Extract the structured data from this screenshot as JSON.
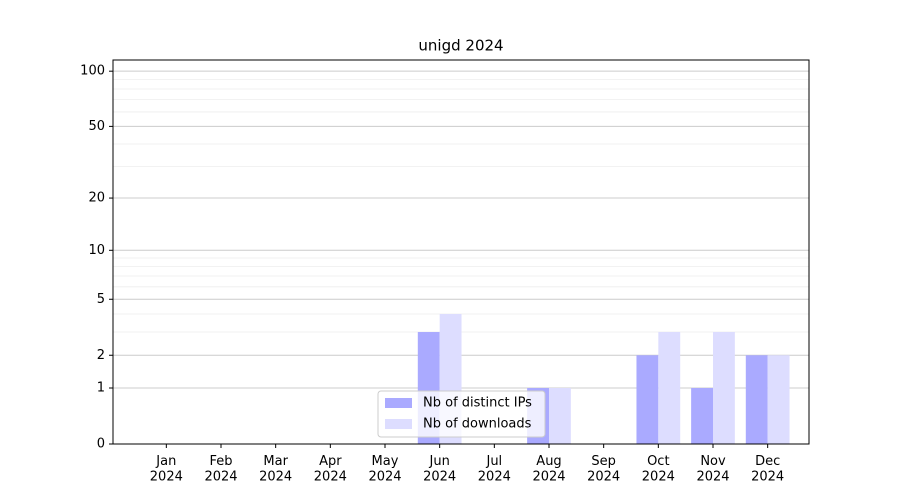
{
  "chart_data": {
    "type": "bar",
    "title": "unigd 2024",
    "categories": [
      "Jan\n2024",
      "Feb\n2024",
      "Mar\n2024",
      "Apr\n2024",
      "May\n2024",
      "Jun\n2024",
      "Jul\n2024",
      "Aug\n2024",
      "Sep\n2024",
      "Oct\n2024",
      "Nov\n2024",
      "Dec\n2024"
    ],
    "series": [
      {
        "name": "Nb of distinct IPs",
        "color": "#aaaaff",
        "values": [
          0,
          0,
          0,
          0,
          0,
          3,
          0,
          1,
          0,
          2,
          1,
          2
        ]
      },
      {
        "name": "Nb of downloads",
        "color": "#ddddff",
        "values": [
          0,
          0,
          0,
          0,
          0,
          4,
          0,
          1,
          0,
          3,
          3,
          2
        ]
      }
    ],
    "y_scale": "log1p",
    "ylim": [
      0,
      115
    ],
    "yticks": [
      0,
      1,
      2,
      5,
      10,
      20,
      50,
      100
    ],
    "minor_yticks": [
      3,
      4,
      6,
      7,
      8,
      9,
      30,
      40,
      60,
      70,
      80,
      90
    ],
    "grid": true,
    "legend": "lower center"
  }
}
